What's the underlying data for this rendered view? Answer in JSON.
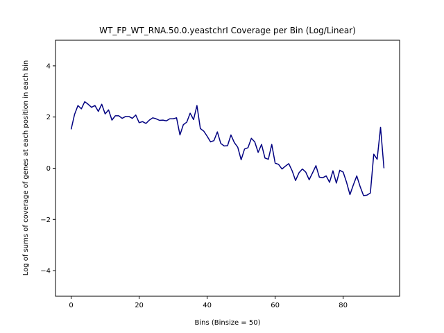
{
  "chart_data": {
    "type": "line",
    "title": "WT_FP_WT_RNA.50.0.yeastchrI Coverage per Bin (Log/Linear)",
    "xlabel": "Bins (Binsize = 50)",
    "ylabel": "Log of sums of coverage of genes at each position in each bin",
    "xlim": [
      -4.6,
      96.6
    ],
    "ylim": [
      -5,
      5
    ],
    "x_ticks": [
      0,
      20,
      40,
      60,
      80
    ],
    "y_ticks": [
      -4,
      -2,
      0,
      2,
      4
    ],
    "x_tick_labels": [
      "0",
      "20",
      "40",
      "60",
      "80"
    ],
    "y_tick_labels": [
      "−4",
      "−2",
      "0",
      "2",
      "4"
    ],
    "grid": false,
    "series": [
      {
        "color": "#000080",
        "x": [
          0,
          1,
          2,
          3,
          4,
          5,
          6,
          7,
          8,
          9,
          10,
          11,
          12,
          13,
          14,
          15,
          16,
          17,
          18,
          19,
          20,
          21,
          22,
          23,
          24,
          25,
          26,
          27,
          28,
          29,
          30,
          31,
          32,
          33,
          34,
          35,
          36,
          37,
          38,
          39,
          40,
          41,
          42,
          43,
          44,
          45,
          46,
          47,
          48,
          49,
          50,
          51,
          52,
          53,
          54,
          55,
          56,
          57,
          58,
          59,
          60,
          61,
          62,
          63,
          64,
          65,
          66,
          67,
          68,
          69,
          70,
          71,
          72,
          73,
          74,
          75,
          76,
          77,
          78,
          79,
          80,
          81,
          82,
          83,
          84,
          85,
          86,
          87,
          88,
          89,
          90,
          91,
          92
        ],
        "values": [
          1.52,
          2.1,
          2.45,
          2.32,
          2.6,
          2.5,
          2.38,
          2.45,
          2.22,
          2.5,
          2.12,
          2.28,
          1.88,
          2.05,
          2.05,
          1.95,
          2.02,
          2.02,
          1.95,
          2.08,
          1.78,
          1.82,
          1.75,
          1.88,
          1.97,
          1.93,
          1.87,
          1.88,
          1.85,
          1.93,
          1.93,
          1.97,
          1.3,
          1.7,
          1.8,
          2.15,
          1.9,
          2.45,
          1.55,
          1.45,
          1.25,
          1.03,
          1.08,
          1.42,
          0.97,
          0.87,
          0.88,
          1.3,
          1.0,
          0.82,
          0.33,
          0.75,
          0.8,
          1.17,
          1.03,
          0.62,
          0.93,
          0.4,
          0.35,
          0.93,
          0.2,
          0.15,
          -0.03,
          0.08,
          0.18,
          -0.1,
          -0.48,
          -0.18,
          -0.03,
          -0.15,
          -0.45,
          -0.18,
          0.1,
          -0.35,
          -0.37,
          -0.3,
          -0.55,
          -0.1,
          -0.58,
          -0.08,
          -0.15,
          -0.55,
          -1.03,
          -0.65,
          -0.3,
          -0.72,
          -1.07,
          -1.05,
          -0.97,
          0.55,
          0.35,
          1.6,
          0.0
        ]
      }
    ]
  }
}
